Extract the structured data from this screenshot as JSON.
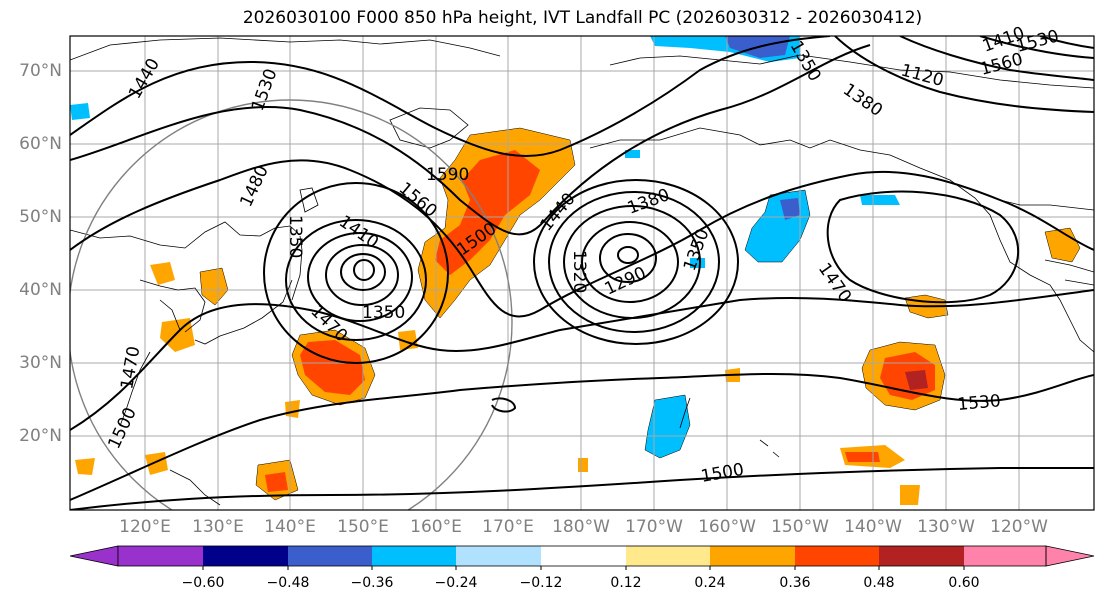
{
  "title": "2026030100 F000 850 hPa height, IVT Landfall PC (2026030312 - 2026030412)",
  "latitude_labels": [
    "70°N",
    "60°N",
    "50°N",
    "40°N",
    "30°N",
    "20°N"
  ],
  "longitude_labels": [
    "120°E",
    "130°E",
    "140°E",
    "150°E",
    "160°E",
    "170°E",
    "180°W",
    "170°W",
    "160°W",
    "150°W",
    "140°W",
    "130°W",
    "120°W"
  ],
  "colorbar": {
    "ticks": [
      "−0.60",
      "−0.48",
      "−0.36",
      "−0.24",
      "−0.12",
      "0.12",
      "0.24",
      "0.36",
      "0.48",
      "0.60"
    ],
    "colors": [
      "#9932cc",
      "#00008b",
      "#3a5fcd",
      "#00bfff",
      "#b0e2ff",
      "#ffffff",
      "#ffe98c",
      "#ffa500",
      "#ff4500",
      "#b22222",
      "#ff82ab"
    ]
  },
  "contour_labels": [
    {
      "text": "1440",
      "name": "contour-label-1440-nw"
    },
    {
      "text": "1530",
      "name": "contour-label-1530-n"
    },
    {
      "text": "1350",
      "name": "contour-label-1350-ne"
    },
    {
      "text": "1380",
      "name": "contour-label-1380-ne"
    },
    {
      "text": "1410",
      "name": "contour-label-1410-tr"
    },
    {
      "text": "1120",
      "name": "contour-label-1120-a"
    },
    {
      "text": "1560",
      "name": "contour-label-1560-tr"
    },
    {
      "text": "1530",
      "name": "contour-label-1530-tr"
    },
    {
      "text": "1590",
      "name": "contour-label-1590"
    },
    {
      "text": "1560",
      "name": "contour-label-1560"
    },
    {
      "text": "1480",
      "name": "contour-label-1480"
    },
    {
      "text": "1410",
      "name": "contour-label-1410-w"
    },
    {
      "text": "1350",
      "name": "contour-label-1350-vert"
    },
    {
      "text": "1500",
      "name": "contour-label-1500-mid"
    },
    {
      "text": "1440",
      "name": "contour-label-1440-mid"
    },
    {
      "text": "1380",
      "name": "contour-label-1380-mid"
    },
    {
      "text": "1320",
      "name": "contour-label-1320"
    },
    {
      "text": "1290",
      "name": "contour-label-1290"
    },
    {
      "text": "1350",
      "name": "contour-label-1350-e"
    },
    {
      "text": "1350",
      "name": "contour-label-1350-low"
    },
    {
      "text": "1470",
      "name": "contour-label-1470-w"
    },
    {
      "text": "1470",
      "name": "contour-label-1470-e"
    },
    {
      "text": "1470",
      "name": "contour-label-1470-far-w"
    },
    {
      "text": "1500",
      "name": "contour-label-1500-far-w"
    },
    {
      "text": "1500",
      "name": "contour-label-1500-s"
    },
    {
      "text": "1530",
      "name": "contour-label-1530-e"
    }
  ]
}
